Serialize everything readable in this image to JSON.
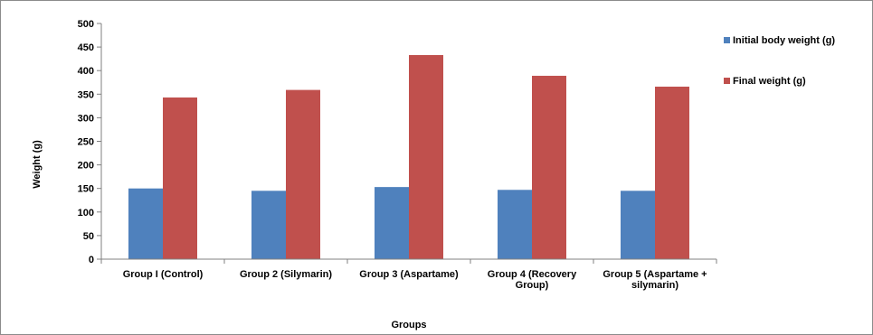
{
  "chart_data": {
    "type": "bar",
    "title": "",
    "xlabel": "Groups",
    "ylabel": "Weight (g)",
    "ylim": [
      0,
      500
    ],
    "yticks": [
      0,
      50,
      100,
      150,
      200,
      250,
      300,
      350,
      400,
      450,
      500
    ],
    "grid": false,
    "legend_position": "right",
    "categories": [
      [
        "Group I (Control)"
      ],
      [
        "Group 2 (Silymarin)"
      ],
      [
        "Group 3 (Aspartame)"
      ],
      [
        "Group 4 (Recovery",
        "Group)"
      ],
      [
        "Group 5 (Aspartame +",
        "silymarin)"
      ]
    ],
    "series": [
      {
        "name": "Initial body weight (g)",
        "color": "#4F81BD",
        "values": [
          150,
          145,
          153,
          147,
          145
        ]
      },
      {
        "name": "Final weight (g)",
        "color": "#C0504D",
        "values": [
          343,
          359,
          433,
          389,
          366
        ]
      }
    ]
  }
}
